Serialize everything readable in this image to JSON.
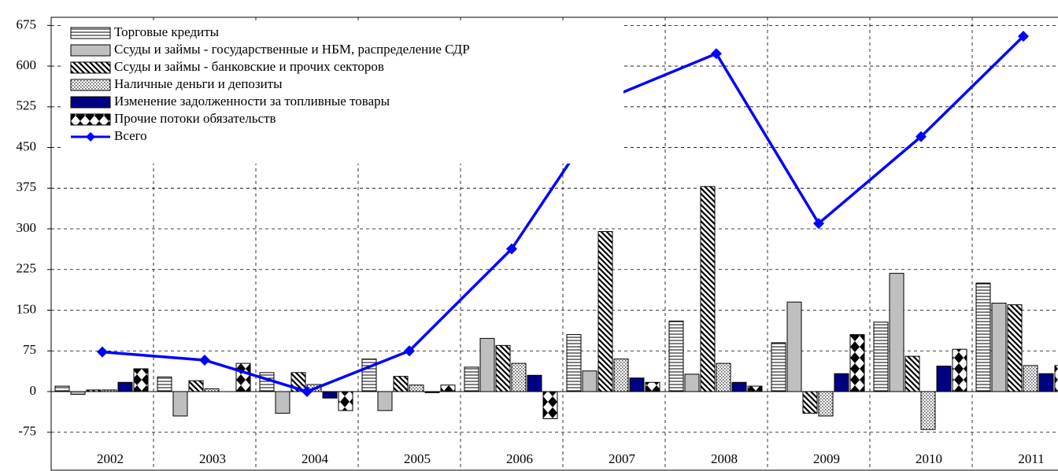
{
  "chart_data": {
    "type": "bar",
    "categories": [
      "2002",
      "2003",
      "2004",
      "2005",
      "2006",
      "2007",
      "2008",
      "2009",
      "2010",
      "2011"
    ],
    "series": [
      {
        "name": "Торговые кредиты",
        "color": "#ffffff",
        "pattern": "horizontal",
        "values": [
          10,
          27,
          35,
          60,
          45,
          105,
          130,
          90,
          128,
          200
        ]
      },
      {
        "name": "Ссуды и займы - государственные и НБМ, распределение СДР",
        "color": "#bfbfbf",
        "pattern": "solid",
        "values": [
          -5,
          -45,
          -40,
          -35,
          98,
          38,
          32,
          165,
          218,
          163
        ]
      },
      {
        "name": "Ссуды и займы - банковские и прочих секторов",
        "color": "#ffffff",
        "pattern": "diagonal",
        "values": [
          3,
          20,
          35,
          28,
          85,
          295,
          378,
          -40,
          65,
          160
        ]
      },
      {
        "name": "Наличные деньги и депозиты",
        "color": "#ffffff",
        "pattern": "dots",
        "values": [
          3,
          5,
          13,
          12,
          52,
          60,
          52,
          -45,
          -70,
          48
        ]
      },
      {
        "name": "Изменение задолженности за топливные товары",
        "color": "#000080",
        "pattern": "solid",
        "values": [
          17,
          0,
          -12,
          -2,
          30,
          25,
          17,
          33,
          47,
          33
        ]
      },
      {
        "name": "Прочие потоки обязательств",
        "color": "#ffffff",
        "pattern": "diamonds",
        "values": [
          42,
          52,
          -35,
          12,
          -50,
          17,
          10,
          105,
          78,
          48
        ]
      },
      {
        "name": "Всего",
        "color": "#0000ff",
        "type": "line",
        "values": [
          73,
          58,
          0,
          75,
          263,
          545,
          623,
          310,
          470,
          655
        ]
      }
    ],
    "ylim": [
      -145,
      690
    ],
    "yticks": [
      675,
      600,
      525,
      450,
      375,
      300,
      225,
      150,
      75,
      0,
      -75
    ],
    "grid": true,
    "legend": "upper left"
  }
}
